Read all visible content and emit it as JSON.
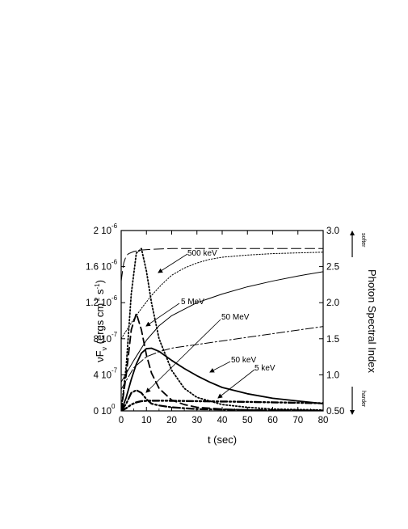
{
  "chart_data": {
    "type": "line",
    "title": "",
    "xlabel": "t  (sec)",
    "ylabel_left": "νF_ν  (ergs cm^-2 s^-1)",
    "ylabel_right": "Photon  Spectral  Index",
    "right_axis_up_label": "softer",
    "right_axis_down_label": "harder",
    "xlim": [
      0,
      80
    ],
    "ylim_left": [
      0,
      2e-06
    ],
    "ylim_right": [
      0.5,
      3.0
    ],
    "x_ticks": [
      "0",
      "10",
      "20",
      "30",
      "40",
      "50",
      "60",
      "70",
      "80"
    ],
    "y_left_ticks": [
      {
        "mantissa": "0 10",
        "exp": "0"
      },
      {
        "mantissa": "4 10",
        "exp": "-7"
      },
      {
        "mantissa": "8 10",
        "exp": "-7"
      },
      {
        "mantissa": "1.2 10",
        "exp": "-6"
      },
      {
        "mantissa": "1.6 10",
        "exp": "-6"
      },
      {
        "mantissa": "2 10",
        "exp": "-6"
      }
    ],
    "y_right_ticks": [
      "0.50",
      "1.0",
      "1.5",
      "2.0",
      "2.5",
      "3.0"
    ],
    "annotations": [
      {
        "text": "500  keV"
      },
      {
        "text": "5 MeV"
      },
      {
        "text": "50 MeV"
      },
      {
        "text": "50  keV"
      },
      {
        "text": "5 keV"
      }
    ],
    "series": [
      {
        "label": "500  keV",
        "axis": "left",
        "style": "dotted-heavy",
        "x": [
          0,
          2,
          4,
          6,
          8,
          10,
          12,
          15,
          20,
          25,
          30,
          40,
          50,
          60,
          80
        ],
        "y": [
          0,
          5e-07,
          1.3e-06,
          1.75e-06,
          1.8e-06,
          1.55e-06,
          1.2e-06,
          8e-07,
          4.5e-07,
          2.5e-07,
          1.5e-07,
          7e-08,
          4e-08,
          2e-08,
          1e-08
        ]
      },
      {
        "label": "5 MeV",
        "axis": "left",
        "style": "dashed-heavy",
        "x": [
          0,
          2,
          4,
          6,
          8,
          10,
          12,
          15,
          20,
          25,
          30,
          40,
          50,
          60,
          80
        ],
        "y": [
          0,
          4e-07,
          9e-07,
          1.08e-06,
          9e-07,
          6.2e-07,
          4.2e-07,
          2.5e-07,
          1.2e-07,
          7e-08,
          4e-08,
          2e-08,
          1e-08,
          5e-09,
          2e-09
        ]
      },
      {
        "label": "50 MeV",
        "axis": "left",
        "style": "dashdot-heavy",
        "x": [
          0,
          2,
          4,
          6,
          8,
          10,
          12,
          15,
          20,
          25,
          30,
          40,
          50,
          60,
          80
        ],
        "y": [
          0,
          8e-08,
          2e-07,
          2.3e-07,
          2e-07,
          1.3e-07,
          8e-08,
          6e-08,
          4e-08,
          3e-08,
          2e-08,
          1.5e-08,
          1e-08,
          8e-09,
          5e-09
        ]
      },
      {
        "label": "50  keV",
        "axis": "left",
        "style": "solid-heavy",
        "x": [
          0,
          2,
          4,
          6,
          8,
          10,
          12,
          15,
          20,
          25,
          30,
          35,
          40,
          50,
          60,
          70,
          80
        ],
        "y": [
          0,
          1.5e-07,
          3.5e-07,
          5.2e-07,
          6.4e-07,
          6.9e-07,
          6.95e-07,
          6.6e-07,
          5.6e-07,
          4.7e-07,
          3.9e-07,
          3.2e-07,
          2.6e-07,
          1.9e-07,
          1.4e-07,
          1.1e-07,
          8e-08
        ]
      },
      {
        "label": "5 keV",
        "axis": "left",
        "style": "dashdotdot-heavy",
        "x": [
          0,
          2,
          4,
          6,
          8,
          10,
          12,
          15,
          20,
          25,
          30,
          40,
          50,
          60,
          70,
          80
        ],
        "y": [
          0,
          3e-08,
          7e-08,
          9.5e-08,
          1.08e-07,
          1.12e-07,
          1.13e-07,
          1.13e-07,
          1.12e-07,
          1.1e-07,
          1.08e-07,
          1.04e-07,
          1e-07,
          9.5e-08,
          9e-08,
          8.5e-08
        ]
      },
      {
        "label": "index 500 keV",
        "axis": "right",
        "style": "dotted-thin",
        "x": [
          0,
          4,
          8,
          12,
          16,
          20,
          25,
          30,
          35,
          40,
          50,
          60,
          70,
          80
        ],
        "y": [
          1.5,
          1.72,
          1.92,
          2.1,
          2.25,
          2.38,
          2.48,
          2.55,
          2.6,
          2.63,
          2.66,
          2.68,
          2.69,
          2.7
        ]
      },
      {
        "label": "index 5 MeV",
        "axis": "right",
        "style": "dashed-thin",
        "x": [
          0,
          1,
          2,
          3,
          5,
          8,
          12,
          20,
          40,
          60,
          80
        ],
        "y": [
          2.3,
          2.55,
          2.65,
          2.68,
          2.71,
          2.73,
          2.74,
          2.75,
          2.75,
          2.75,
          2.75
        ]
      },
      {
        "label": "index 50 keV",
        "axis": "right",
        "style": "solid-thin",
        "x": [
          0,
          5,
          10,
          15,
          20,
          30,
          40,
          50,
          60,
          70,
          80
        ],
        "y": [
          0.9,
          1.2,
          1.48,
          1.68,
          1.82,
          2.0,
          2.12,
          2.22,
          2.3,
          2.37,
          2.43
        ]
      },
      {
        "label": "index 5 keV",
        "axis": "right",
        "style": "dashdot-thin",
        "x": [
          0,
          5,
          10,
          15,
          20,
          30,
          40,
          50,
          60,
          70,
          80
        ],
        "y": [
          0.8,
          1.1,
          1.25,
          1.32,
          1.37,
          1.42,
          1.47,
          1.52,
          1.57,
          1.62,
          1.67
        ]
      }
    ],
    "legend": "none",
    "grid": false
  }
}
